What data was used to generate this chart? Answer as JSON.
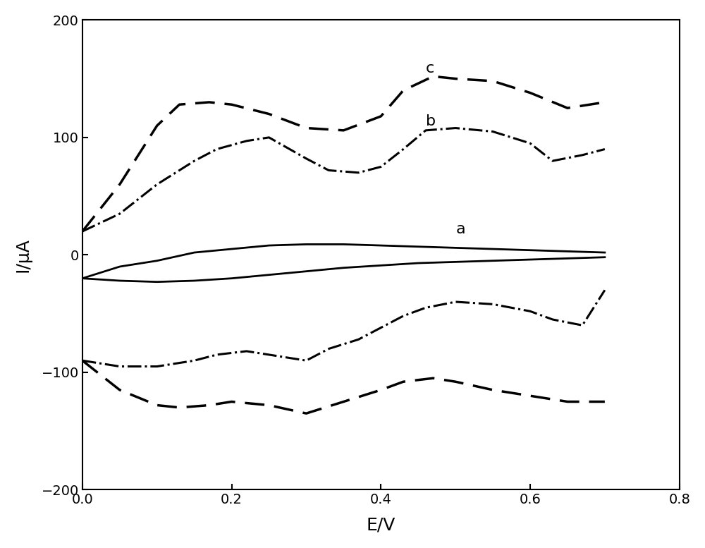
{
  "xlabel": "E/V",
  "ylabel": "I/μA",
  "xlim": [
    0.0,
    0.8
  ],
  "ylim": [
    -200,
    200
  ],
  "yticks": [
    -200,
    -100,
    0,
    100,
    200
  ],
  "xticks": [
    0.0,
    0.2,
    0.4,
    0.6,
    0.8
  ],
  "background_color": "#ffffff",
  "label_a": "a",
  "label_b": "b",
  "label_c": "c",
  "curve_a_upper_x": [
    0.0,
    0.05,
    0.1,
    0.15,
    0.2,
    0.25,
    0.3,
    0.35,
    0.4,
    0.45,
    0.5,
    0.55,
    0.6,
    0.65,
    0.7
  ],
  "curve_a_upper_y": [
    -20,
    -10,
    -5,
    2,
    5,
    8,
    9,
    9,
    8,
    7,
    6,
    5,
    4,
    3,
    2
  ],
  "curve_a_lower_x": [
    0.0,
    0.05,
    0.1,
    0.15,
    0.2,
    0.25,
    0.3,
    0.35,
    0.4,
    0.45,
    0.5,
    0.55,
    0.6,
    0.65,
    0.7
  ],
  "curve_a_lower_y": [
    -20,
    -22,
    -23,
    -22,
    -20,
    -17,
    -14,
    -11,
    -9,
    -7,
    -6,
    -5,
    -4,
    -3,
    -2
  ],
  "curve_b_upper_x": [
    0.0,
    0.05,
    0.1,
    0.15,
    0.18,
    0.22,
    0.25,
    0.3,
    0.33,
    0.37,
    0.4,
    0.43,
    0.46,
    0.5,
    0.55,
    0.6,
    0.63,
    0.67,
    0.7
  ],
  "curve_b_upper_y": [
    20,
    35,
    60,
    80,
    90,
    97,
    100,
    82,
    72,
    70,
    75,
    90,
    106,
    108,
    105,
    95,
    80,
    85,
    90
  ],
  "curve_b_lower_x": [
    0.0,
    0.05,
    0.1,
    0.15,
    0.18,
    0.22,
    0.25,
    0.3,
    0.33,
    0.37,
    0.4,
    0.43,
    0.46,
    0.5,
    0.55,
    0.6,
    0.63,
    0.67,
    0.7
  ],
  "curve_b_lower_y": [
    -90,
    -95,
    -95,
    -90,
    -85,
    -82,
    -85,
    -90,
    -80,
    -72,
    -62,
    -52,
    -45,
    -40,
    -42,
    -48,
    -55,
    -60,
    -30
  ],
  "curve_c_upper_x": [
    0.0,
    0.05,
    0.1,
    0.13,
    0.17,
    0.2,
    0.25,
    0.3,
    0.35,
    0.4,
    0.43,
    0.47,
    0.5,
    0.55,
    0.6,
    0.65,
    0.7
  ],
  "curve_c_upper_y": [
    20,
    60,
    110,
    128,
    130,
    128,
    120,
    108,
    106,
    118,
    140,
    152,
    150,
    148,
    138,
    125,
    130
  ],
  "curve_c_lower_x": [
    0.0,
    0.05,
    0.1,
    0.13,
    0.17,
    0.2,
    0.25,
    0.3,
    0.35,
    0.4,
    0.43,
    0.47,
    0.5,
    0.55,
    0.6,
    0.65,
    0.7
  ],
  "curve_c_lower_y": [
    -90,
    -115,
    -128,
    -130,
    -128,
    -125,
    -128,
    -135,
    -125,
    -115,
    -108,
    -105,
    -108,
    -115,
    -120,
    -125,
    -125
  ]
}
